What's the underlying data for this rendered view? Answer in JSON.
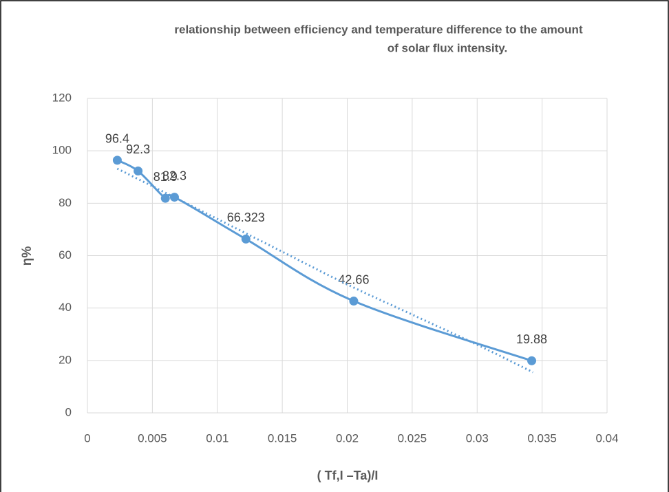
{
  "chart_data": {
    "type": "scatter",
    "title": [
      "relationship between efficiency and temperature difference to the amount",
      "of solar flux intensity."
    ],
    "x_label": "( Tf,I –Ta)/I",
    "y_label": "η%",
    "series": [
      {
        "color": "#5b9bd5",
        "style": "smooth-line-markers",
        "x": [
          0.0023,
          0.0039,
          0.006,
          0.0067,
          0.0122,
          0.0205,
          0.0342
        ],
        "values": [
          96.4,
          92.3,
          81.9,
          82.3,
          66.323,
          42.66,
          19.88
        ],
        "data_labels": true
      },
      {
        "color": "#5b9bd5",
        "style": "dotted",
        "x": [
          0.0023,
          0.006,
          0.01,
          0.015,
          0.02,
          0.025,
          0.03,
          0.0343
        ],
        "values": [
          93.2,
          84,
          74,
          61.5,
          49,
          37.5,
          26,
          15.5
        ]
      }
    ],
    "xlim": [
      0,
      0.04
    ],
    "xticks": [
      0,
      0.005,
      0.01,
      0.015,
      0.02,
      0.025,
      0.03,
      0.035,
      0.04
    ],
    "ylim": [
      0,
      120
    ],
    "yticks": [
      0,
      20,
      40,
      60,
      80,
      100,
      120
    ],
    "grid": true
  }
}
